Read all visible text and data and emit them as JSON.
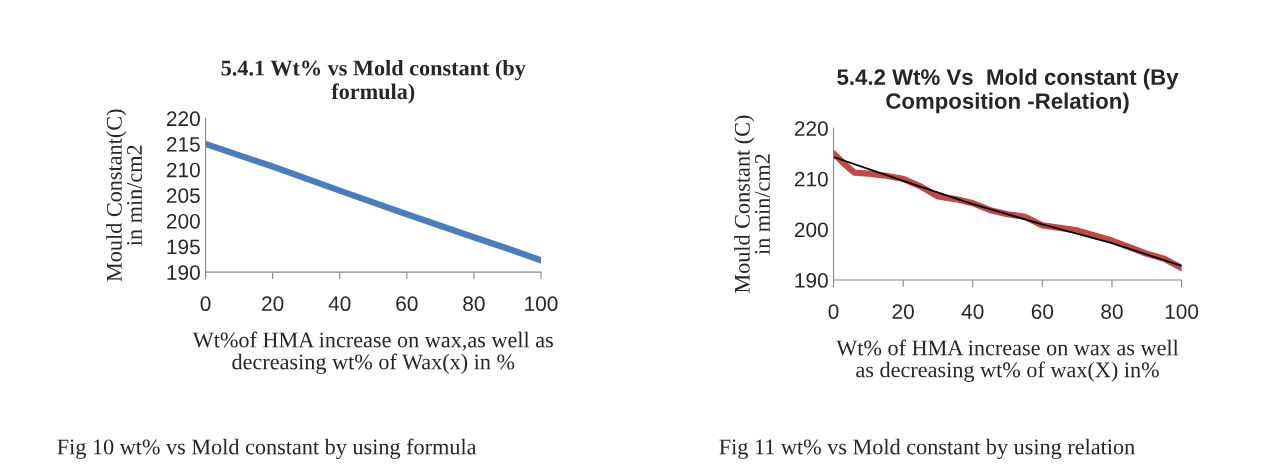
{
  "chart_data": [
    {
      "type": "line",
      "title": "5.4.1 Wt% vs Mold constant (by\nformula)",
      "ylabel": "Mould Constant(C)\nin min/cm2",
      "xlabel": "Wt%of HMA increase on wax,as well as\ndecreasing wt% of Wax(x) in %",
      "xlim": [
        0,
        100
      ],
      "xticks": [
        0,
        20,
        40,
        60,
        80,
        100
      ],
      "ylim": [
        190,
        220
      ],
      "yticks": [
        190,
        195,
        200,
        205,
        210,
        215,
        220
      ],
      "grid": false,
      "legend": false,
      "series": [
        {
          "color": "#4a7ebb",
          "x": [
            0,
            20,
            40,
            60,
            80,
            90,
            100
          ],
          "values": [
            215,
            210.6,
            205.9,
            201.3,
            196.8,
            194.6,
            192.3
          ]
        }
      ],
      "annotations": [
        "Fig 10 wt% vs Mold constant by using formula"
      ]
    },
    {
      "type": "line",
      "title": "5.4.2 Wt% Vs  Mold constant (By\nComposition -Relation)",
      "ylabel": "Mould Constant (C)\nin min/cm2",
      "xlabel": "Wt% of HMA increase on wax as well\nas decreasing wt% of wax(X) in%",
      "xlim": [
        0,
        100
      ],
      "xticks": [
        0,
        20,
        40,
        60,
        80,
        100
      ],
      "ylim": [
        190,
        220
      ],
      "yticks": [
        190,
        200,
        210,
        220
      ],
      "grid": false,
      "legend": false,
      "series": [
        {
          "color": "#be4b48",
          "x": [
            0,
            3,
            6,
            10,
            15,
            20,
            25,
            30,
            35,
            40,
            45,
            50,
            55,
            60,
            65,
            70,
            80,
            90,
            95,
            100
          ],
          "values": [
            215,
            213,
            211.2,
            211,
            210.6,
            210,
            208.5,
            206.5,
            206,
            205.2,
            203.8,
            203,
            202.5,
            200.8,
            200.3,
            199.8,
            197.8,
            195.2,
            194.2,
            192.4
          ]
        },
        {
          "color": "#000000",
          "x": [
            0,
            20,
            40,
            60,
            80,
            100
          ],
          "values": [
            214.3,
            209.6,
            205,
            201,
            197.3,
            192.8
          ]
        }
      ],
      "annotations": [
        "Fig 11 wt% vs Mold constant by using relation"
      ]
    }
  ]
}
